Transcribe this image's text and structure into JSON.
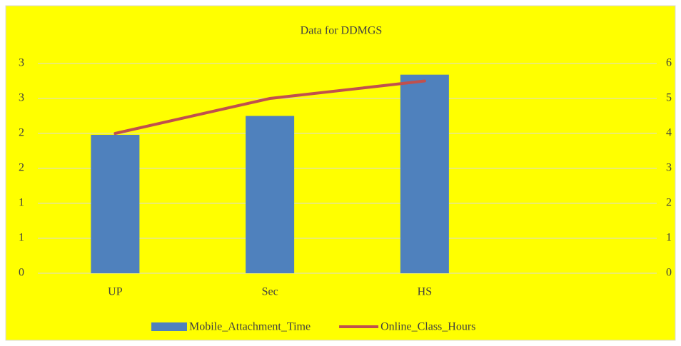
{
  "chart_data": {
    "type": "bar",
    "title": "Data for DDMGS",
    "categories": [
      "UP",
      "Sec",
      "HS",
      null
    ],
    "series": [
      {
        "name": "Mobile_Attachment_Time",
        "color": "#4f81bd",
        "type": "bar",
        "values": [
          1.98,
          2.25,
          2.84,
          null
        ]
      },
      {
        "name": "Online_Class_Hours",
        "color": "#c0504d",
        "type": "line",
        "axis": "y2",
        "values": [
          4,
          5,
          5.5,
          null
        ]
      }
    ],
    "ylim": [
      0,
      3
    ],
    "yticks": [
      0,
      {
        "value": 0.5,
        "label": "1"
      },
      1,
      {
        "value": 1.5,
        "label": "2"
      },
      2,
      {
        "value": 2.5,
        "label": "3"
      },
      3
    ],
    "y2lim": [
      0,
      6
    ],
    "y2ticks": [
      0,
      1,
      2,
      3,
      4,
      5,
      6
    ],
    "grid": true,
    "legend": "bottom",
    "background": "#ffff00"
  }
}
